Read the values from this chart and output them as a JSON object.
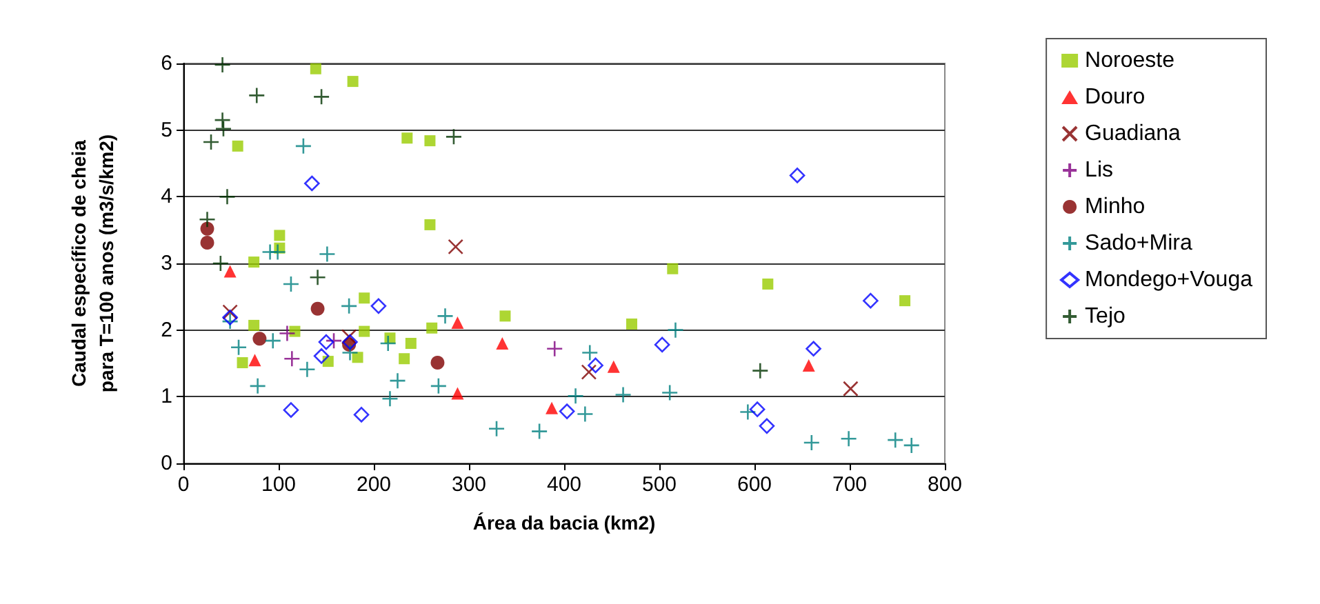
{
  "chart_data": {
    "type": "scatter",
    "xlabel": "Área da bacia (km2)",
    "ylabel": "Caudal específico de cheia\npara T=100 anos (m3/s/km2)",
    "xlim": [
      0,
      800
    ],
    "xticks": [
      0,
      100,
      200,
      300,
      400,
      500,
      600,
      700,
      800
    ],
    "ylim": [
      0,
      6
    ],
    "yticks": [
      0,
      1,
      2,
      3,
      4,
      5,
      6
    ],
    "grid": "y",
    "legend": "right",
    "series": [
      {
        "name": "Noroeste",
        "color": "#99cc00",
        "marker": "square",
        "x": [
          139,
          178,
          57,
          235,
          259,
          259,
          101,
          101,
          74,
          74,
          62,
          117,
          152,
          190,
          190,
          183,
          217,
          239,
          232,
          261,
          338,
          471,
          514,
          614,
          758
        ],
        "values": [
          5.92,
          5.73,
          4.76,
          4.88,
          4.84,
          3.58,
          3.42,
          3.23,
          3.02,
          2.07,
          1.51,
          1.98,
          1.53,
          2.48,
          1.98,
          1.59,
          1.88,
          1.8,
          1.57,
          2.03,
          2.21,
          2.09,
          2.92,
          2.69,
          2.44
        ]
      },
      {
        "name": "Douro",
        "color": "#ff0000",
        "marker": "triangle",
        "x": [
          49,
          75,
          288,
          335,
          288,
          387,
          452,
          657
        ],
        "values": [
          2.88,
          1.55,
          2.11,
          1.8,
          1.05,
          0.83,
          1.45,
          1.47
        ]
      },
      {
        "name": "Guadiana",
        "color": "#800000",
        "marker": "x",
        "x": [
          49,
          174,
          286,
          426,
          701
        ],
        "values": [
          2.27,
          1.9,
          3.25,
          1.37,
          1.12
        ]
      },
      {
        "name": "Lis",
        "color": "#800080",
        "marker": "cross",
        "x": [
          109,
          114,
          158,
          390
        ],
        "values": [
          1.95,
          1.57,
          1.84,
          1.72
        ]
      },
      {
        "name": "Minho",
        "color": "#800000",
        "marker": "circle",
        "x": [
          25,
          25,
          141,
          80,
          174,
          267
        ],
        "values": [
          3.52,
          3.31,
          2.32,
          1.87,
          1.78,
          1.51
        ]
      },
      {
        "name": "Sado+Mira",
        "color": "#008080",
        "marker": "cross",
        "x": [
          126,
          151,
          91,
          99,
          113,
          174,
          275,
          49,
          58,
          94,
          130,
          78,
          215,
          175,
          225,
          217,
          268,
          427,
          412,
          462,
          511,
          422,
          329,
          374,
          517,
          593,
          660,
          699,
          748,
          765
        ],
        "values": [
          4.76,
          3.14,
          3.17,
          3.17,
          2.69,
          2.36,
          2.21,
          2.13,
          1.74,
          1.84,
          1.41,
          1.16,
          1.8,
          1.66,
          1.24,
          0.97,
          1.16,
          1.66,
          1.01,
          1.03,
          1.06,
          0.74,
          0.52,
          0.48,
          2.0,
          0.77,
          0.31,
          0.37,
          0.35,
          0.27
        ]
      },
      {
        "name": "Mondego+Vouga",
        "color": "#0000ff",
        "marker": "diamond",
        "x": [
          135,
          49,
          205,
          150,
          145,
          175,
          113,
          187,
          433,
          403,
          503,
          645,
          722,
          662,
          603,
          613
        ],
        "values": [
          4.2,
          2.19,
          2.36,
          1.82,
          1.61,
          1.82,
          0.8,
          0.73,
          1.47,
          0.78,
          1.78,
          4.32,
          2.44,
          1.72,
          0.81,
          0.56
        ]
      },
      {
        "name": "Tejo",
        "color": "#003300",
        "marker": "cross",
        "x": [
          41,
          77,
          145,
          41,
          42,
          29,
          46,
          25,
          284,
          39,
          141,
          606
        ],
        "values": [
          5.98,
          5.52,
          5.5,
          5.15,
          5.02,
          4.82,
          4.0,
          3.66,
          4.9,
          3.0,
          2.79,
          1.39
        ]
      }
    ]
  }
}
